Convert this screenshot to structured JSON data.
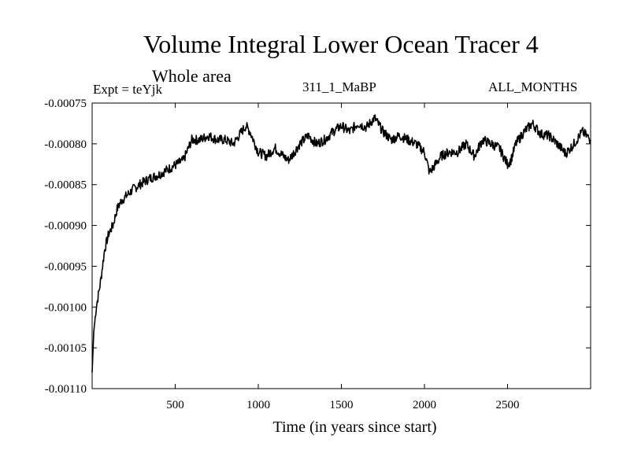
{
  "header": {
    "title": "Volume Integral Lower Ocean Tracer 4",
    "subtitle": "Whole area",
    "experiment": "Expt = teYjk",
    "run_id": "311_1_MaBP",
    "period": "ALL_MONTHS"
  },
  "chart_data": {
    "type": "line",
    "title": "Volume Integral Lower Ocean Tracer 4",
    "subtitle": "Whole area",
    "xlabel": "Time (in years since start)",
    "ylabel": "",
    "xlim": [
      0,
      3000
    ],
    "ylim": [
      -0.0011,
      -0.00075
    ],
    "x_ticks": [
      500,
      1000,
      1500,
      2000,
      2500
    ],
    "x_tick_labels": [
      "500",
      "1000",
      "1500",
      "2000",
      "2500"
    ],
    "y_ticks": [
      -0.0011,
      -0.00105,
      -0.001,
      -0.00095,
      -0.0009,
      -0.00085,
      -0.0008,
      -0.00075
    ],
    "y_tick_labels": [
      "-0.00110",
      "-0.00105",
      "-0.00100",
      "-0.00095",
      "-0.00090",
      "-0.00085",
      "-0.00080",
      "-0.00075"
    ],
    "grid": false,
    "series": [
      {
        "name": "Volume Integral Lower Ocean Tracer 4",
        "x": [
          0,
          10,
          25,
          50,
          75,
          100,
          125,
          150,
          175,
          200,
          250,
          300,
          350,
          400,
          450,
          500,
          550,
          600,
          650,
          700,
          750,
          800,
          850,
          900,
          925,
          950,
          1000,
          1050,
          1100,
          1150,
          1180,
          1200,
          1250,
          1300,
          1350,
          1400,
          1450,
          1500,
          1550,
          1600,
          1650,
          1700,
          1720,
          1750,
          1800,
          1850,
          1900,
          1950,
          2000,
          2030,
          2050,
          2100,
          2150,
          2200,
          2250,
          2300,
          2350,
          2400,
          2450,
          2500,
          2520,
          2550,
          2600,
          2650,
          2700,
          2750,
          2800,
          2850,
          2900,
          2950,
          3000
        ],
        "values": [
          -0.00108,
          -0.00103,
          -0.001,
          -0.00097,
          -0.00093,
          -0.00091,
          -0.0009,
          -0.00088,
          -0.00087,
          -0.000865,
          -0.000855,
          -0.000848,
          -0.000842,
          -0.000838,
          -0.000832,
          -0.000826,
          -0.00082,
          -0.000795,
          -0.000795,
          -0.00079,
          -0.000795,
          -0.000795,
          -0.0008,
          -0.000785,
          -0.000778,
          -0.000785,
          -0.00081,
          -0.000815,
          -0.000805,
          -0.000815,
          -0.00082,
          -0.000815,
          -0.0008,
          -0.00079,
          -0.0008,
          -0.000795,
          -0.000785,
          -0.000778,
          -0.000785,
          -0.000775,
          -0.00078,
          -0.000768,
          -0.000775,
          -0.000785,
          -0.000795,
          -0.00079,
          -0.000795,
          -0.0008,
          -0.00081,
          -0.000835,
          -0.00083,
          -0.000815,
          -0.00081,
          -0.00081,
          -0.0008,
          -0.000815,
          -0.000795,
          -0.0008,
          -0.000805,
          -0.000825,
          -0.00082,
          -0.0008,
          -0.000785,
          -0.000775,
          -0.000788,
          -0.00079,
          -0.0008,
          -0.000812,
          -0.0008,
          -0.000785,
          -0.000795
        ]
      }
    ]
  }
}
